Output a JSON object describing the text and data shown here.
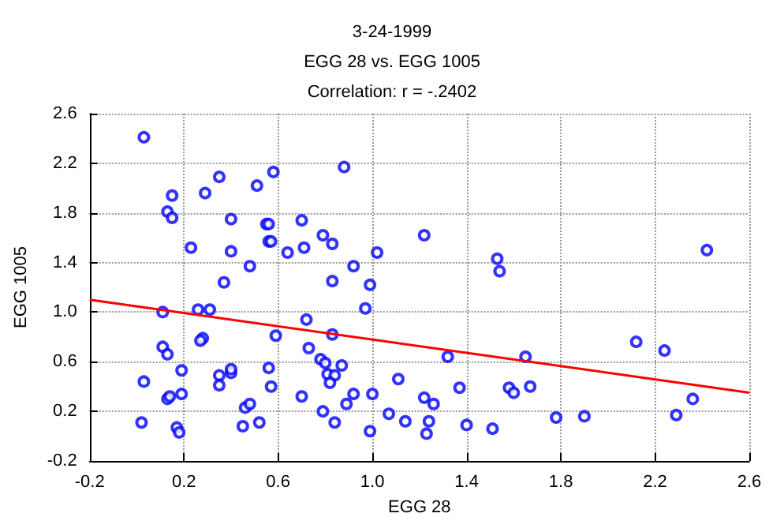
{
  "chart_data": {
    "type": "scatter",
    "title": "3-24-1999",
    "subtitle": "EGG 28 vs. EGG 1005",
    "annotations": [
      "Correlation: r = -.2402"
    ],
    "xlabel": "EGG 28",
    "ylabel": "EGG 1005",
    "xlim": [
      -0.2,
      2.6
    ],
    "xticks": [
      -0.2,
      0.2,
      0.6,
      {
        "value": 1,
        "label": "1.0"
      },
      1.4,
      1.8,
      2.2,
      2.6
    ],
    "ylim": [
      -0.2,
      2.6
    ],
    "yticks": [
      -0.2,
      0.2,
      0.6,
      {
        "value": 1,
        "label": "1.0"
      },
      1.4,
      1.8,
      2.2,
      2.6
    ],
    "grid": true,
    "marker": "circle",
    "series": [
      {
        "color": "#0000ff",
        "x": [
          0.03,
          0.15,
          0.13,
          0.15,
          0.29,
          0.35,
          0.51,
          0.58,
          0.23,
          0.4,
          0.4,
          0.48,
          0.55,
          0.56,
          0.56,
          0.57,
          0.64,
          0.7,
          0.71,
          0.37,
          0.11,
          0.26,
          0.31,
          0.11,
          0.13,
          0.28,
          0.27,
          0.59,
          0.03,
          0.19,
          0.35,
          0.4,
          0.4,
          0.35,
          0.56,
          0.57,
          0.7,
          0.13,
          0.14,
          0.19,
          0.46,
          0.48,
          0.02,
          0.17,
          0.18,
          0.45,
          0.52,
          0.88,
          0.79,
          0.83,
          1.02,
          1.22,
          0.92,
          0.83,
          0.99,
          0.97,
          0.72,
          0.83,
          0.73,
          0.78,
          0.8,
          0.81,
          0.84,
          0.82,
          0.87,
          1.32,
          1.11,
          0.92,
          0.89,
          1.0,
          0.79,
          0.84,
          0.99,
          1.07,
          1.14,
          1.22,
          1.26,
          1.24,
          1.23,
          1.37,
          1.4,
          1.51,
          1.53,
          1.54,
          1.58,
          1.6,
          1.65,
          1.67,
          1.78,
          1.9,
          2.12,
          2.24,
          2.29,
          2.36,
          2.42
        ],
        "values": [
          2.41,
          1.94,
          1.81,
          1.76,
          1.96,
          2.09,
          2.02,
          2.13,
          1.52,
          1.75,
          1.49,
          1.37,
          1.71,
          1.71,
          1.57,
          1.57,
          1.48,
          1.74,
          1.52,
          1.24,
          1.0,
          1.02,
          1.02,
          0.72,
          0.66,
          0.79,
          0.77,
          0.81,
          0.44,
          0.53,
          0.49,
          0.51,
          0.54,
          0.41,
          0.55,
          0.4,
          0.32,
          0.3,
          0.32,
          0.34,
          0.23,
          0.26,
          0.11,
          0.07,
          0.03,
          0.08,
          0.11,
          2.17,
          1.62,
          1.55,
          1.48,
          1.62,
          1.37,
          1.25,
          1.22,
          1.03,
          0.94,
          0.82,
          0.71,
          0.62,
          0.59,
          0.5,
          0.49,
          0.43,
          0.57,
          0.64,
          0.46,
          0.34,
          0.26,
          0.34,
          0.2,
          0.11,
          0.04,
          0.18,
          0.12,
          0.31,
          0.26,
          0.12,
          0.02,
          0.39,
          0.09,
          0.06,
          1.43,
          1.33,
          0.39,
          0.35,
          0.64,
          0.4,
          0.15,
          0.16,
          0.76,
          0.69,
          0.17,
          0.3,
          1.5
        ]
      },
      {
        "type": "line",
        "color": "#ff0000",
        "x": [
          -0.2,
          2.6
        ],
        "values": [
          1.1,
          0.35
        ],
        "marker": "none",
        "line_style": "solid"
      }
    ]
  }
}
